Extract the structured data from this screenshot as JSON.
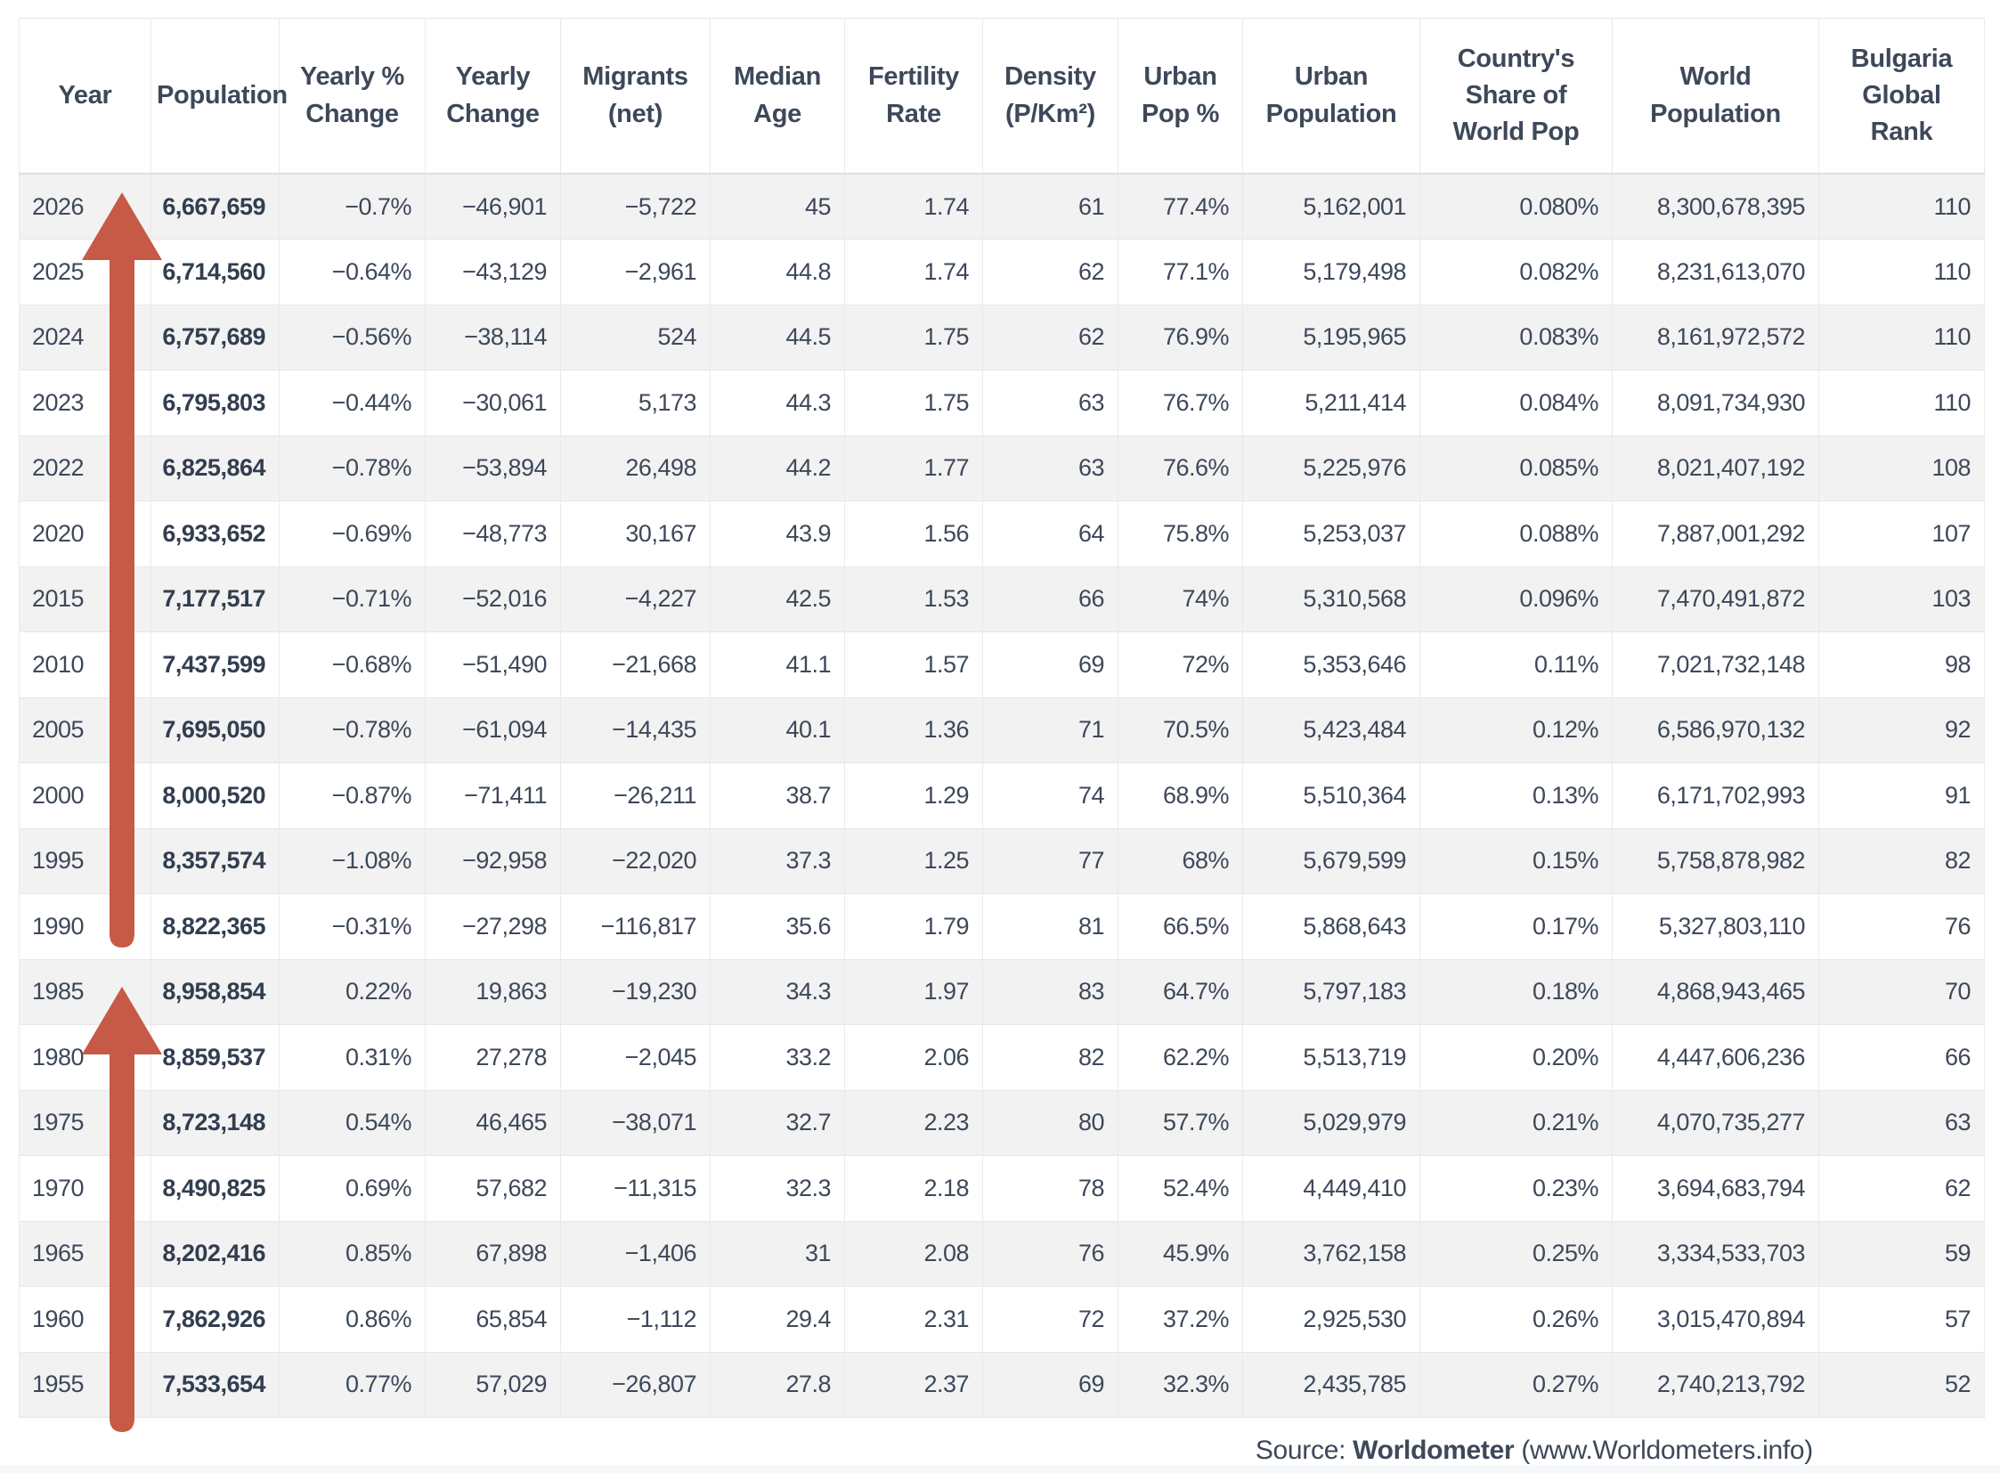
{
  "colors": {
    "arrow_red": "#c65a46",
    "text_dark": "#3d4859",
    "row_stripe": "#f2f2f2",
    "border_light": "#e6e7e9"
  },
  "table": {
    "columns": [
      "Year",
      "Population",
      "Yearly %\nChange",
      "Yearly\nChange",
      "Migrants\n(net)",
      "Median\nAge",
      "Fertility\nRate",
      "Density\n(P/Km²)",
      "Urban\nPop %",
      "Urban\nPopulation",
      "Country's\nShare of\nWorld Pop",
      "World\nPopulation",
      "Bulgaria\nGlobal\nRank"
    ],
    "rows": [
      [
        "2026",
        "6,667,659",
        "−0.7%",
        "−46,901",
        "−5,722",
        "45",
        "1.74",
        "61",
        "77.4%",
        "5,162,001",
        "0.080%",
        "8,300,678,395",
        "110"
      ],
      [
        "2025",
        "6,714,560",
        "−0.64%",
        "−43,129",
        "−2,961",
        "44.8",
        "1.74",
        "62",
        "77.1%",
        "5,179,498",
        "0.082%",
        "8,231,613,070",
        "110"
      ],
      [
        "2024",
        "6,757,689",
        "−0.56%",
        "−38,114",
        "524",
        "44.5",
        "1.75",
        "62",
        "76.9%",
        "5,195,965",
        "0.083%",
        "8,161,972,572",
        "110"
      ],
      [
        "2023",
        "6,795,803",
        "−0.44%",
        "−30,061",
        "5,173",
        "44.3",
        "1.75",
        "63",
        "76.7%",
        "5,211,414",
        "0.084%",
        "8,091,734,930",
        "110"
      ],
      [
        "2022",
        "6,825,864",
        "−0.78%",
        "−53,894",
        "26,498",
        "44.2",
        "1.77",
        "63",
        "76.6%",
        "5,225,976",
        "0.085%",
        "8,021,407,192",
        "108"
      ],
      [
        "2020",
        "6,933,652",
        "−0.69%",
        "−48,773",
        "30,167",
        "43.9",
        "1.56",
        "64",
        "75.8%",
        "5,253,037",
        "0.088%",
        "7,887,001,292",
        "107"
      ],
      [
        "2015",
        "7,177,517",
        "−0.71%",
        "−52,016",
        "−4,227",
        "42.5",
        "1.53",
        "66",
        "74%",
        "5,310,568",
        "0.096%",
        "7,470,491,872",
        "103"
      ],
      [
        "2010",
        "7,437,599",
        "−0.68%",
        "−51,490",
        "−21,668",
        "41.1",
        "1.57",
        "69",
        "72%",
        "5,353,646",
        "0.11%",
        "7,021,732,148",
        "98"
      ],
      [
        "2005",
        "7,695,050",
        "−0.78%",
        "−61,094",
        "−14,435",
        "40.1",
        "1.36",
        "71",
        "70.5%",
        "5,423,484",
        "0.12%",
        "6,586,970,132",
        "92"
      ],
      [
        "2000",
        "8,000,520",
        "−0.87%",
        "−71,411",
        "−26,211",
        "38.7",
        "1.29",
        "74",
        "68.9%",
        "5,510,364",
        "0.13%",
        "6,171,702,993",
        "91"
      ],
      [
        "1995",
        "8,357,574",
        "−1.08%",
        "−92,958",
        "−22,020",
        "37.3",
        "1.25",
        "77",
        "68%",
        "5,679,599",
        "0.15%",
        "5,758,878,982",
        "82"
      ],
      [
        "1990",
        "8,822,365",
        "−0.31%",
        "−27,298",
        "−116,817",
        "35.6",
        "1.79",
        "81",
        "66.5%",
        "5,868,643",
        "0.17%",
        "5,327,803,110",
        "76"
      ],
      [
        "1985",
        "8,958,854",
        "0.22%",
        "19,863",
        "−19,230",
        "34.3",
        "1.97",
        "83",
        "64.7%",
        "5,797,183",
        "0.18%",
        "4,868,943,465",
        "70"
      ],
      [
        "1980",
        "8,859,537",
        "0.31%",
        "27,278",
        "−2,045",
        "33.2",
        "2.06",
        "82",
        "62.2%",
        "5,513,719",
        "0.20%",
        "4,447,606,236",
        "66"
      ],
      [
        "1975",
        "8,723,148",
        "0.54%",
        "46,465",
        "−38,071",
        "32.7",
        "2.23",
        "80",
        "57.7%",
        "5,029,979",
        "0.21%",
        "4,070,735,277",
        "63"
      ],
      [
        "1970",
        "8,490,825",
        "0.69%",
        "57,682",
        "−11,315",
        "32.3",
        "2.18",
        "78",
        "52.4%",
        "4,449,410",
        "0.23%",
        "3,694,683,794",
        "62"
      ],
      [
        "1965",
        "8,202,416",
        "0.85%",
        "67,898",
        "−1,406",
        "31",
        "2.08",
        "76",
        "45.9%",
        "3,762,158",
        "0.25%",
        "3,334,533,703",
        "59"
      ],
      [
        "1960",
        "7,862,926",
        "0.86%",
        "65,854",
        "−1,112",
        "29.4",
        "2.31",
        "72",
        "37.2%",
        "2,925,530",
        "0.26%",
        "3,015,470,894",
        "57"
      ],
      [
        "1955",
        "7,533,654",
        "0.77%",
        "57,029",
        "−26,807",
        "27.8",
        "2.37",
        "69",
        "32.3%",
        "2,435,785",
        "0.27%",
        "2,740,213,792",
        "52"
      ]
    ]
  },
  "source": {
    "prefix": "Source: ",
    "name": "Worldometer",
    "suffix": " (www.Worldometers.info)"
  },
  "annotations": {
    "arrows": [
      {
        "name": "red-up-arrow-1990-to-2026",
        "direction": "up"
      },
      {
        "name": "red-up-arrow-1955-to-1985",
        "direction": "up"
      }
    ]
  }
}
